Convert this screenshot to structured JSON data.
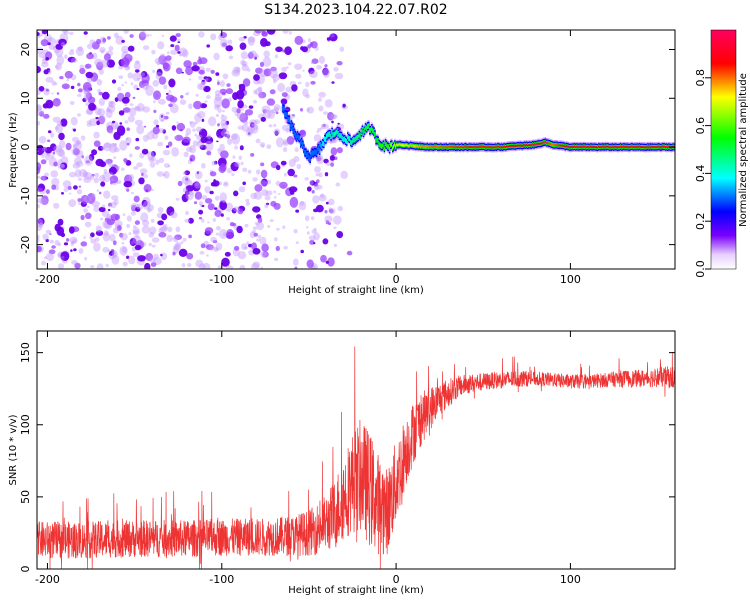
{
  "title": "S134.2023.104.22.07.R02",
  "chart_data": [
    {
      "type": "heatmap",
      "xlabel": "Height of straight line (km)",
      "ylabel": "Frequency (Hz)",
      "xlim": [
        -206,
        160
      ],
      "ylim": [
        -25,
        24
      ],
      "x_ticks": [
        -200,
        -100,
        0,
        100
      ],
      "y_ticks": [
        -20,
        -10,
        0,
        10,
        20
      ],
      "colorbar": {
        "label": "Normalized spectral amplitude",
        "range": [
          0,
          1
        ],
        "ticks": [
          "0.0",
          "0.2",
          "0.4",
          "0.6",
          "0.8"
        ],
        "colormap": [
          "#ffffff",
          "#7a00ff",
          "#0000ff",
          "#00ffff",
          "#00ff00",
          "#ffff00",
          "#ff0000",
          "#ff0060"
        ]
      },
      "noise_region_x": [
        -206,
        -50
      ],
      "carrier_trace": {
        "x": [
          -65,
          -60,
          -55,
          -50,
          -45,
          -40,
          -35,
          -30,
          -25,
          -20,
          -15,
          -10,
          -5,
          0,
          20,
          40,
          60,
          80,
          85,
          90,
          100,
          120,
          160
        ],
        "y": [
          8,
          4,
          1,
          -2,
          -1,
          2,
          3,
          2,
          1,
          3,
          4,
          1,
          0,
          0.5,
          0,
          0,
          0,
          0.5,
          1,
          0.5,
          0,
          0,
          0
        ],
        "amplitude": [
          0.3,
          0.3,
          0.3,
          0.3,
          0.3,
          0.4,
          0.45,
          0.4,
          0.45,
          0.5,
          0.5,
          0.55,
          0.6,
          0.7,
          0.8,
          0.85,
          0.85,
          0.9,
          0.85,
          0.8,
          0.9,
          0.9,
          0.9
        ]
      }
    },
    {
      "type": "line",
      "xlabel": "Height of straight line (km)",
      "ylabel": "SNR (10 * v/v)",
      "xlim": [
        -206,
        160
      ],
      "ylim": [
        0,
        165
      ],
      "x_ticks": [
        -200,
        -100,
        0,
        100
      ],
      "y_ticks": [
        0,
        50,
        100,
        150
      ],
      "series": [
        {
          "color": "#ee3333",
          "x": [
            -206,
            -180,
            -150,
            -120,
            -100,
            -80,
            -60,
            -50,
            -45,
            -40,
            -35,
            -30,
            -25,
            -20,
            -15,
            -10,
            -5,
            0,
            5,
            10,
            15,
            20,
            25,
            30,
            35,
            40,
            50,
            60,
            70,
            80,
            90,
            100,
            110,
            120,
            130,
            140,
            150,
            160
          ],
          "mean": [
            20,
            20,
            21,
            21,
            22,
            22,
            23,
            25,
            28,
            32,
            38,
            50,
            60,
            65,
            55,
            45,
            40,
            60,
            80,
            95,
            105,
            112,
            118,
            122,
            126,
            128,
            130,
            131,
            132,
            132,
            131,
            130,
            130,
            131,
            132,
            132,
            133,
            133
          ],
          "spread": [
            13,
            13,
            13,
            13,
            13,
            13,
            14,
            16,
            18,
            20,
            25,
            30,
            35,
            40,
            40,
            35,
            30,
            30,
            25,
            22,
            18,
            15,
            12,
            10,
            8,
            7,
            6,
            6,
            6,
            5,
            5,
            5,
            5,
            5,
            6,
            6,
            7,
            8
          ]
        }
      ]
    }
  ]
}
